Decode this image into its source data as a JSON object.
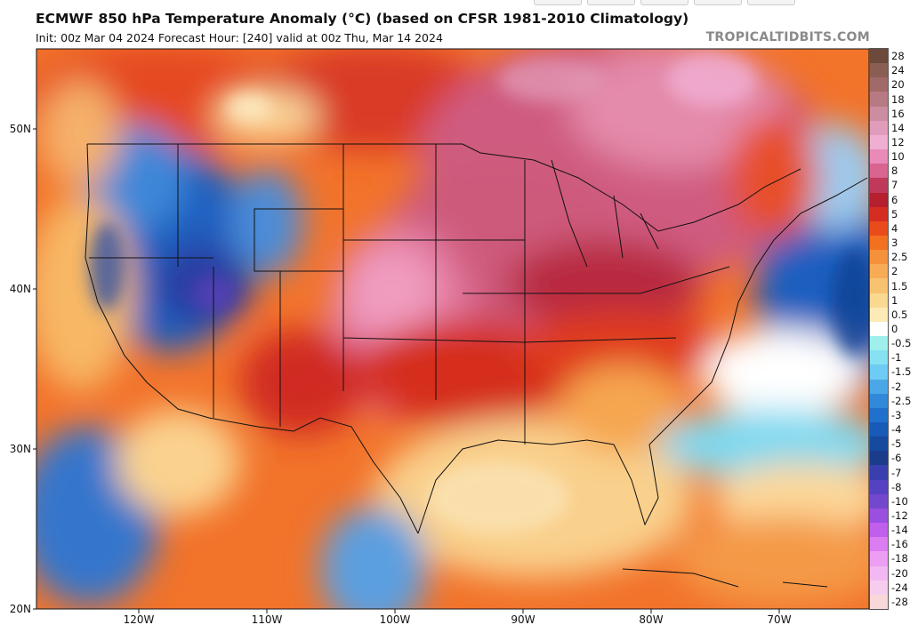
{
  "header": {
    "title": "ECMWF 850 hPa Temperature Anomaly (°C) (based on CFSR 1981-2010 Climatology)",
    "subtitle": "Init: 00z Mar 04 2024   Forecast Hour: [240]   valid at 00z Thu, Mar 14 2024",
    "brand": "TROPICALTIDBITS.COM"
  },
  "map": {
    "lon_range": [
      -128,
      -63
    ],
    "lat_range": [
      20,
      55
    ],
    "lat_labels": [
      "50N",
      "40N",
      "30N",
      "20N"
    ],
    "lon_labels": [
      "120W",
      "110W",
      "100W",
      "90W",
      "80W",
      "70W"
    ]
  },
  "colorbar": {
    "labels": [
      "28",
      "24",
      "20",
      "18",
      "16",
      "14",
      "12",
      "10",
      "8",
      "7",
      "6",
      "5",
      "4",
      "3",
      "2.5",
      "2",
      "1.5",
      "1",
      "0.5",
      "0",
      "-0.5",
      "-1",
      "-1.5",
      "-2",
      "-2.5",
      "-3",
      "-4",
      "-5",
      "-6",
      "-7",
      "-8",
      "-10",
      "-12",
      "-14",
      "-16",
      "-18",
      "-20",
      "-24",
      "-28"
    ],
    "colors": [
      "#6b4a3c",
      "#8a5e52",
      "#a06a68",
      "#b77a82",
      "#cc8da0",
      "#e09cbb",
      "#f0aed2",
      "#e98ab8",
      "#d9648f",
      "#c1395a",
      "#b61f2e",
      "#d52d1f",
      "#ea4b1c",
      "#f2701f",
      "#f5913a",
      "#f7ab55",
      "#f8c370",
      "#fad890",
      "#fcebb5",
      "#ffffff",
      "#9ff0ec",
      "#86e2f2",
      "#6ecbf3",
      "#4aa8e8",
      "#3289da",
      "#2070cc",
      "#185ab7",
      "#154a9f",
      "#1a3c8a",
      "#3a3fb0",
      "#5542c2",
      "#7447cf",
      "#9a4fe0",
      "#c05fec",
      "#dc7cf1",
      "#ec9df4",
      "#f3b8f4",
      "#f6cdef",
      "#f8d8d8"
    ]
  }
}
